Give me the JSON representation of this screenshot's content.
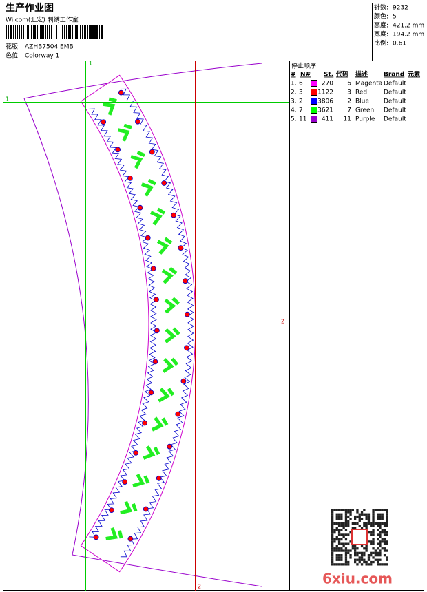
{
  "header": {
    "title": "生产作业图",
    "studio": "Wilcom(汇宏) 刺绣工作室",
    "design_label": "花版:",
    "design": "AZHB7504.EMB",
    "colorway_label": "色位:",
    "colorway": "Colorway 1"
  },
  "stats": [
    {
      "label": "针数:",
      "value": "9232"
    },
    {
      "label": "颜色:",
      "value": "5"
    },
    {
      "label": "高度:",
      "value": "421.2 mm"
    },
    {
      "label": "宽度:",
      "value": "194.2 mm"
    },
    {
      "label": "比例:",
      "value": "0.61"
    }
  ],
  "stop_sequence": {
    "title": "停止顺序:",
    "columns": [
      "#",
      "N#",
      "St.",
      "代码",
      "描述",
      "Brand",
      "元素"
    ],
    "rows": [
      {
        "index": "1.",
        "needle": "6",
        "color": "#ff00ff",
        "stitches": "270",
        "code": "6",
        "description": "Magenta",
        "brand": "Default"
      },
      {
        "index": "2.",
        "needle": "3",
        "color": "#ff0000",
        "stitches": "1122",
        "code": "3",
        "description": "Red",
        "brand": "Default"
      },
      {
        "index": "3.",
        "needle": "2",
        "color": "#0000ff",
        "stitches": "3806",
        "code": "2",
        "description": "Blue",
        "brand": "Default"
      },
      {
        "index": "4.",
        "needle": "7",
        "color": "#00ff00",
        "stitches": "3621",
        "code": "7",
        "description": "Green",
        "brand": "Default"
      },
      {
        "index": "5.",
        "needle": "11",
        "color": "#9900cc",
        "stitches": "411",
        "code": "11",
        "description": "Purple",
        "brand": "Default"
      }
    ]
  },
  "guides": {
    "green_top": "1",
    "green_left": "1",
    "red_right": "2",
    "red_bottom": "2"
  },
  "watermark": "6xiu.com"
}
